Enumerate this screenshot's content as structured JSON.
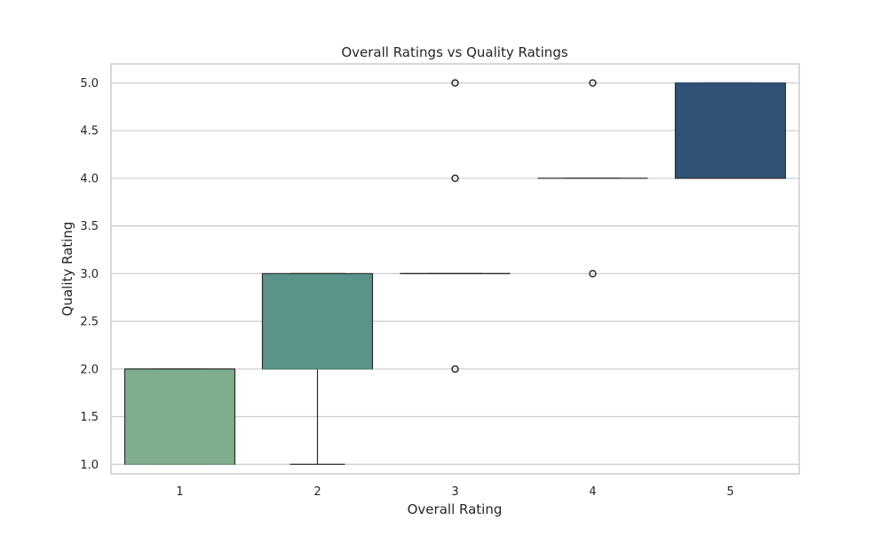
{
  "chart_data": {
    "type": "box",
    "title": "Overall Ratings vs Quality Ratings",
    "xlabel": "Overall Rating",
    "ylabel": "Quality Rating",
    "categories": [
      "1",
      "2",
      "3",
      "4",
      "5"
    ],
    "ylim": [
      0.9,
      5.2
    ],
    "yticks": [
      "1.0",
      "1.5",
      "2.0",
      "2.5",
      "3.0",
      "3.5",
      "4.0",
      "4.5",
      "5.0"
    ],
    "grid": true,
    "boxes": [
      {
        "category": "1",
        "whisker_low": 1.0,
        "q1": 1.0,
        "median": 1.0,
        "q3": 2.0,
        "whisker_high": 2.0,
        "outliers": [],
        "color": "#7fae8e"
      },
      {
        "category": "2",
        "whisker_low": 1.0,
        "q1": 2.0,
        "median": 2.0,
        "q3": 3.0,
        "whisker_high": 3.0,
        "outliers": [],
        "color": "#5a9488"
      },
      {
        "category": "3",
        "whisker_low": 3.0,
        "q1": 3.0,
        "median": 3.0,
        "q3": 3.0,
        "whisker_high": 3.0,
        "outliers": [
          2.0,
          4.0,
          5.0
        ],
        "color": "#3f7a80"
      },
      {
        "category": "4",
        "whisker_low": 4.0,
        "q1": 4.0,
        "median": 4.0,
        "q3": 4.0,
        "whisker_high": 4.0,
        "outliers": [
          3.0,
          5.0
        ],
        "color": "#386478"
      },
      {
        "category": "5",
        "whisker_low": 4.0,
        "q1": 4.0,
        "median": 5.0,
        "q3": 5.0,
        "whisker_high": 5.0,
        "outliers": [],
        "color": "#2f5276"
      }
    ]
  },
  "colors": {
    "grid": "#cccccc",
    "frame": "#cccccc",
    "line": "#2b2b2b",
    "background": "#ffffff"
  }
}
